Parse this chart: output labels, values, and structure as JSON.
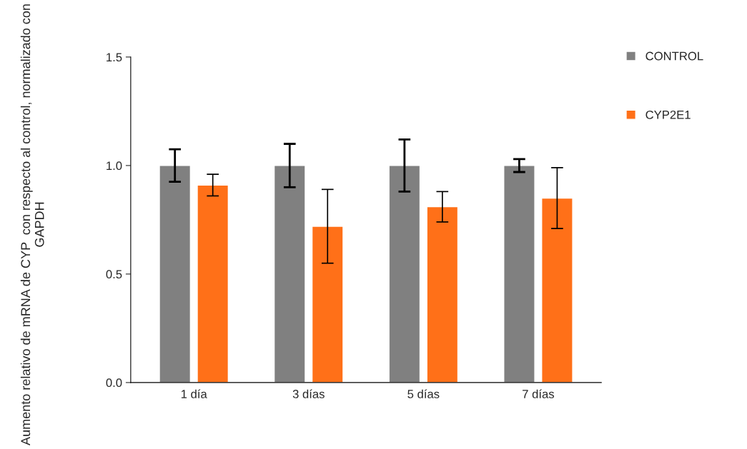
{
  "chart_data": {
    "type": "bar",
    "ylabel": "Aumento relativo de mRNA de CYP  con respecto al control, normalizado con GAPDH",
    "categories": [
      "1 día",
      "3 días",
      "5 días",
      "7 días"
    ],
    "series": [
      {
        "name": "CONTROL",
        "color": "#808080",
        "values": [
          1.0,
          1.0,
          1.0,
          1.0
        ],
        "errors": [
          0.075,
          0.1,
          0.12,
          0.03
        ]
      },
      {
        "name": "CYP2E1",
        "color": "#ff7018",
        "values": [
          0.91,
          0.72,
          0.81,
          0.85
        ],
        "errors": [
          0.05,
          0.17,
          0.07,
          0.14
        ]
      }
    ],
    "ylim": [
      0,
      1.5
    ],
    "yticks": [
      {
        "value": 0,
        "label": "0.0"
      },
      {
        "value": 0.5,
        "label": "0.5"
      },
      {
        "value": 1.0,
        "label": "1.0"
      },
      {
        "value": 1.5,
        "label": "1.5"
      }
    ],
    "grid": false,
    "legend": "right"
  }
}
